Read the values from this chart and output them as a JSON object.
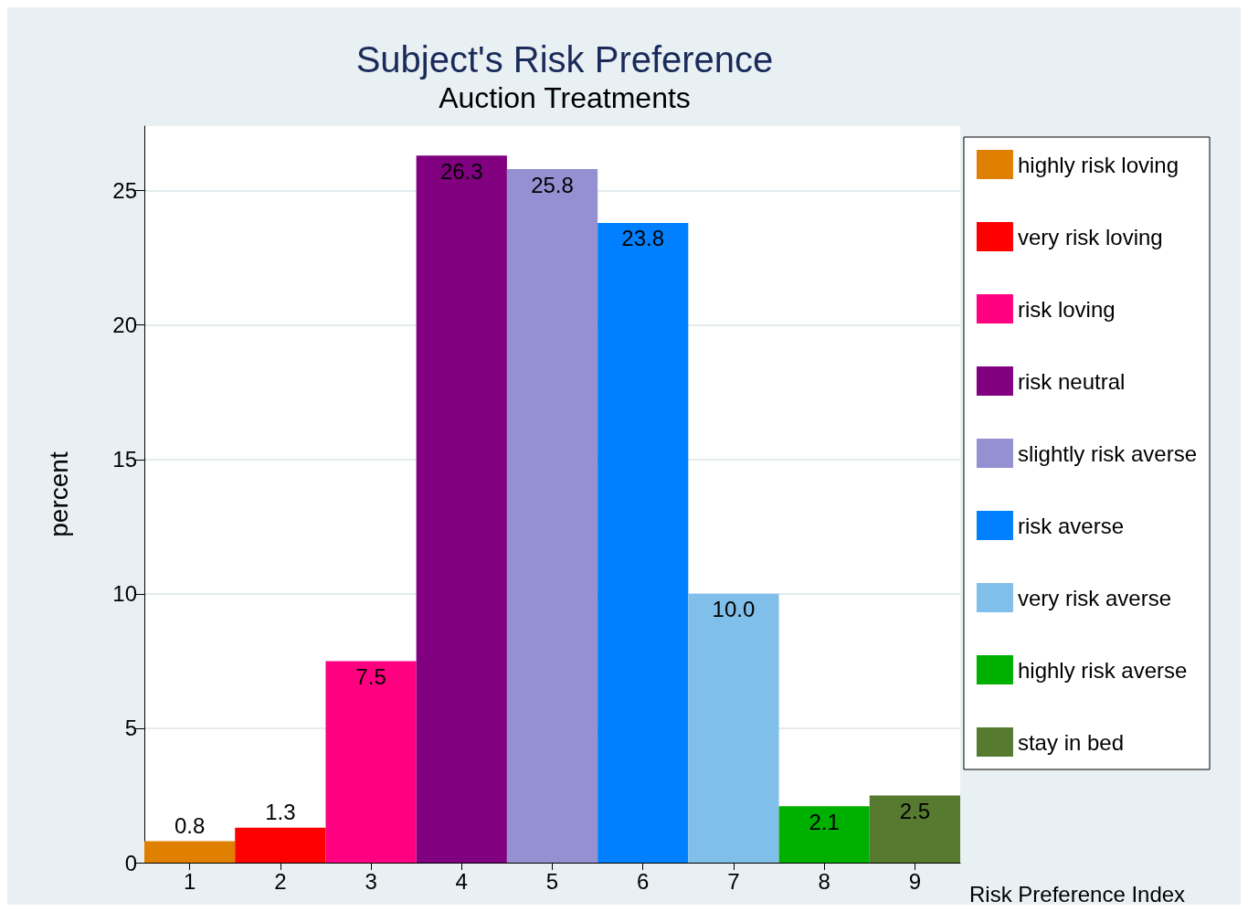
{
  "chart_data": {
    "type": "bar",
    "title": "Subject's Risk Preference",
    "subtitle": "Auction Treatments",
    "xlabel": "Risk Preference Index",
    "ylabel": "percent",
    "categories": [
      "1",
      "2",
      "3",
      "4",
      "5",
      "6",
      "7",
      "8",
      "9"
    ],
    "stacked": true,
    "series": [
      {
        "name": "highly risk loving",
        "color": "#e08000",
        "values": [
          0.8,
          null,
          null,
          null,
          null,
          null,
          null,
          null,
          null
        ],
        "value_labels": [
          "0.8",
          null,
          null,
          null,
          null,
          null,
          null,
          null,
          null
        ]
      },
      {
        "name": "very risk loving",
        "color": "#ff0000",
        "values": [
          null,
          1.3,
          null,
          null,
          null,
          null,
          null,
          null,
          null
        ],
        "value_labels": [
          null,
          "1.3",
          null,
          null,
          null,
          null,
          null,
          null,
          null
        ]
      },
      {
        "name": "risk loving",
        "color": "#ff0080",
        "values": [
          null,
          null,
          7.5,
          null,
          null,
          null,
          null,
          null,
          null
        ],
        "value_labels": [
          null,
          null,
          "7.5",
          null,
          null,
          null,
          null,
          null,
          null
        ]
      },
      {
        "name": "risk neutral",
        "color": "#800080",
        "values": [
          null,
          null,
          null,
          26.3,
          null,
          null,
          null,
          null,
          null
        ],
        "value_labels": [
          null,
          null,
          null,
          "26.3",
          null,
          null,
          null,
          null,
          null
        ]
      },
      {
        "name": "slightly risk averse",
        "color": "#9590d2",
        "values": [
          null,
          null,
          null,
          null,
          25.8,
          null,
          null,
          null,
          null
        ],
        "value_labels": [
          null,
          null,
          null,
          null,
          "25.8",
          null,
          null,
          null,
          null
        ]
      },
      {
        "name": "risk averse",
        "color": "#0080ff",
        "values": [
          null,
          null,
          null,
          null,
          null,
          23.8,
          null,
          null,
          null
        ],
        "value_labels": [
          null,
          null,
          null,
          null,
          null,
          "23.8",
          null,
          null,
          null
        ]
      },
      {
        "name": "very risk averse",
        "color": "#80bfea",
        "values": [
          null,
          null,
          null,
          null,
          null,
          null,
          10,
          null,
          null
        ],
        "value_labels": [
          null,
          null,
          null,
          null,
          null,
          null,
          "10.0",
          null,
          null
        ]
      },
      {
        "name": "highly risk averse",
        "color": "#00b000",
        "values": [
          null,
          null,
          null,
          null,
          null,
          null,
          null,
          2.1,
          null
        ],
        "value_labels": [
          null,
          null,
          null,
          null,
          null,
          null,
          null,
          "2.1",
          null
        ]
      },
      {
        "name": "stay in bed",
        "color": "#557a30",
        "values": [
          null,
          null,
          null,
          null,
          null,
          null,
          null,
          null,
          2.5
        ],
        "value_labels": [
          null,
          null,
          null,
          null,
          null,
          null,
          null,
          null,
          "2.5"
        ]
      }
    ],
    "ylim": [
      0,
      27.4
    ],
    "yticks": [
      0,
      5,
      10,
      15,
      20,
      25
    ],
    "grid": "y",
    "legend": "right"
  }
}
